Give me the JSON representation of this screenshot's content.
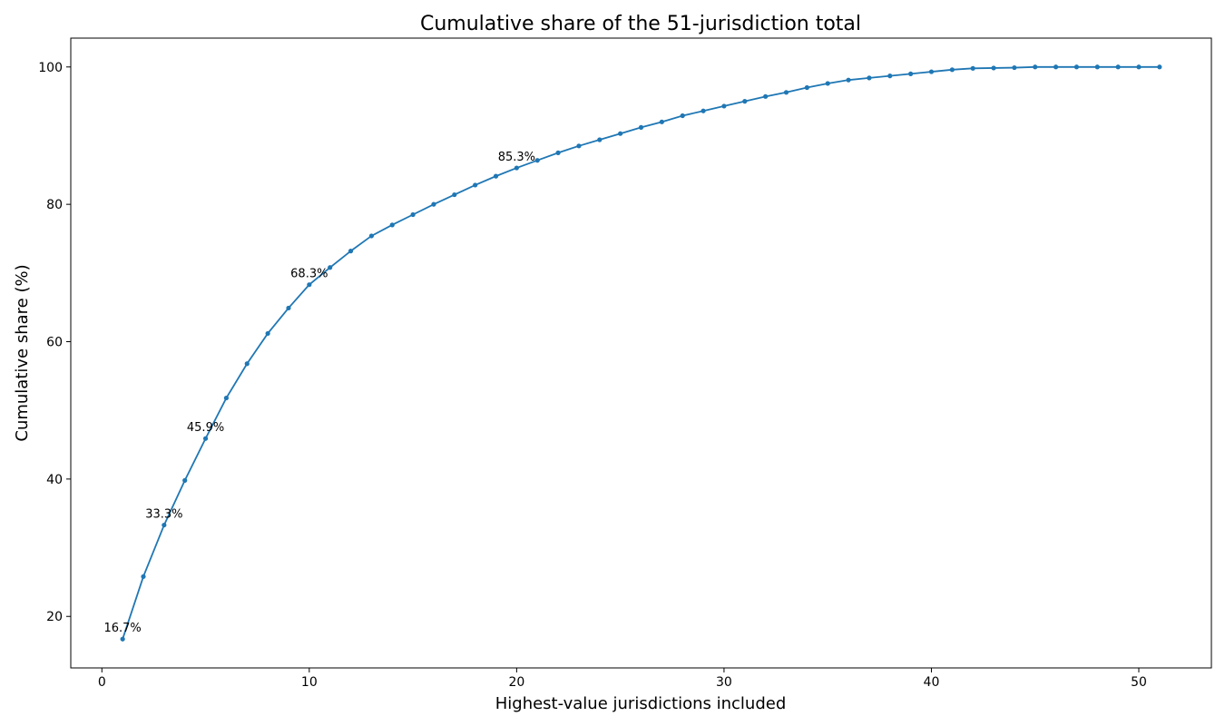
{
  "chart_data": {
    "type": "line",
    "title": "Cumulative share of the 51-jurisdiction total",
    "xlabel": "Highest-value jurisdictions included",
    "ylabel": "Cumulative share (%)",
    "xlim": [
      -1.5,
      53.5
    ],
    "ylim": [
      12.5,
      104.2
    ],
    "xticks": [
      0,
      10,
      20,
      30,
      40,
      50
    ],
    "yticks": [
      20,
      40,
      60,
      80,
      100
    ],
    "grid": false,
    "line_color": "#1f77b4",
    "x": [
      1,
      2,
      3,
      4,
      5,
      6,
      7,
      8,
      9,
      10,
      11,
      12,
      13,
      14,
      15,
      16,
      17,
      18,
      19,
      20,
      21,
      22,
      23,
      24,
      25,
      26,
      27,
      28,
      29,
      30,
      31,
      32,
      33,
      34,
      35,
      36,
      37,
      38,
      39,
      40,
      41,
      42,
      43,
      44,
      45,
      46,
      47,
      48,
      49,
      50,
      51
    ],
    "y": [
      16.7,
      25.8,
      33.3,
      39.8,
      45.9,
      51.8,
      56.8,
      61.2,
      64.9,
      68.3,
      70.8,
      73.2,
      75.4,
      77.0,
      78.5,
      80.0,
      81.4,
      82.8,
      84.1,
      85.3,
      86.4,
      87.5,
      88.5,
      89.4,
      90.3,
      91.2,
      92.0,
      92.9,
      93.6,
      94.3,
      95.0,
      95.7,
      96.3,
      97.0,
      97.6,
      98.1,
      98.4,
      98.7,
      99.0,
      99.3,
      99.6,
      99.8,
      99.85,
      99.9,
      100.0,
      100.0,
      100.0,
      100.0,
      100.0,
      100.0,
      100.0
    ],
    "annotations": [
      {
        "x": 1,
        "y": 16.7,
        "text": "16.7%"
      },
      {
        "x": 3,
        "y": 33.3,
        "text": "33.3%"
      },
      {
        "x": 5,
        "y": 45.9,
        "text": "45.9%"
      },
      {
        "x": 10,
        "y": 68.3,
        "text": "68.3%"
      },
      {
        "x": 20,
        "y": 85.3,
        "text": "85.3%"
      }
    ]
  }
}
